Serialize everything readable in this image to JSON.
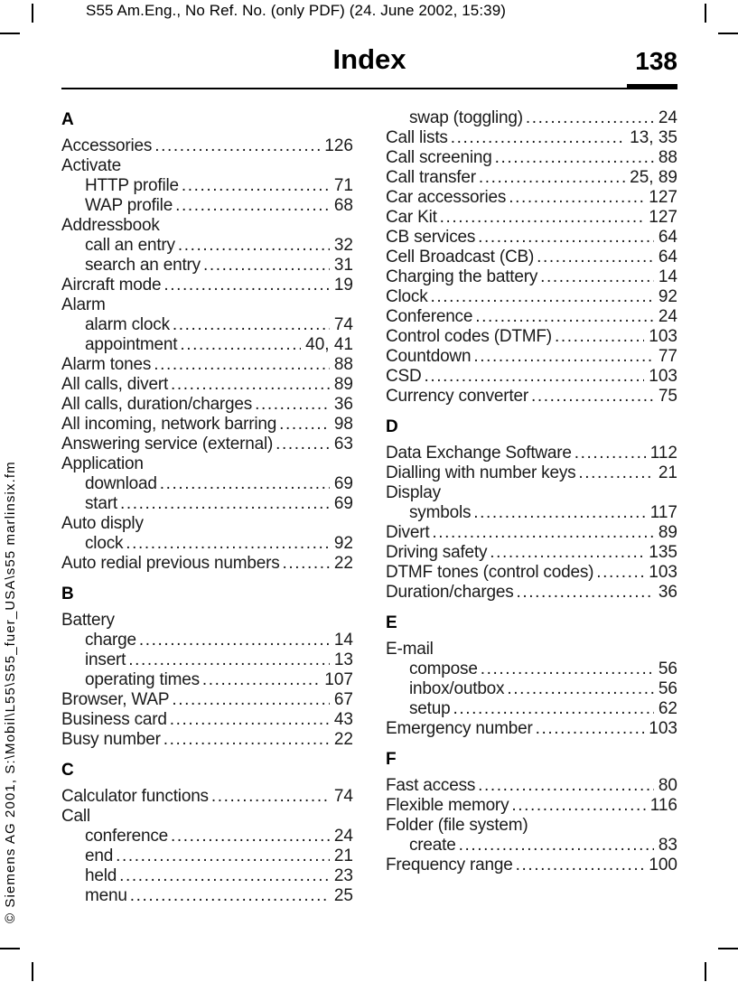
{
  "colors": {
    "text": "#000000",
    "background": "#ffffff"
  },
  "header": {
    "doc_info": "S55 Am.Eng., No Ref. No. (only PDF) (24. June 2002, 15:39)",
    "title": "Index",
    "page_number": "138"
  },
  "sidebar": {
    "copyright": "© Siemens AG 2001, S:\\Mobil\\L55\\S55_fuer_USA\\s55 marlinsix.fm"
  },
  "index": {
    "left_column": [
      {
        "type": "section",
        "label": "A"
      },
      {
        "type": "entry",
        "indent": 0,
        "label": "Accessories",
        "pages": "126"
      },
      {
        "type": "entry",
        "indent": 0,
        "label": "Activate",
        "pages": ""
      },
      {
        "type": "entry",
        "indent": 1,
        "label": "HTTP profile",
        "pages": "71"
      },
      {
        "type": "entry",
        "indent": 1,
        "label": "WAP profile",
        "pages": "68"
      },
      {
        "type": "entry",
        "indent": 0,
        "label": "Addressbook",
        "pages": ""
      },
      {
        "type": "entry",
        "indent": 1,
        "label": "call an entry",
        "pages": "32"
      },
      {
        "type": "entry",
        "indent": 1,
        "label": "search an entry",
        "pages": "31"
      },
      {
        "type": "entry",
        "indent": 0,
        "label": "Aircraft mode",
        "pages": "19"
      },
      {
        "type": "entry",
        "indent": 0,
        "label": "Alarm",
        "pages": ""
      },
      {
        "type": "entry",
        "indent": 1,
        "label": "alarm clock",
        "pages": "74"
      },
      {
        "type": "entry",
        "indent": 1,
        "label": "appointment",
        "pages": "40, 41"
      },
      {
        "type": "entry",
        "indent": 0,
        "label": "Alarm tones",
        "pages": "88"
      },
      {
        "type": "entry",
        "indent": 0,
        "label": "All calls, divert",
        "pages": "89"
      },
      {
        "type": "entry",
        "indent": 0,
        "label": "All calls, duration/charges",
        "pages": "36"
      },
      {
        "type": "entry",
        "indent": 0,
        "label": "All incoming, network barring",
        "pages": "98"
      },
      {
        "type": "entry",
        "indent": 0,
        "label": "Answering service (external)",
        "pages": "63"
      },
      {
        "type": "entry",
        "indent": 0,
        "label": "Application",
        "pages": ""
      },
      {
        "type": "entry",
        "indent": 1,
        "label": "download",
        "pages": "69"
      },
      {
        "type": "entry",
        "indent": 1,
        "label": "start",
        "pages": "69"
      },
      {
        "type": "entry",
        "indent": 0,
        "label": "Auto disply",
        "pages": ""
      },
      {
        "type": "entry",
        "indent": 1,
        "label": "clock",
        "pages": "92"
      },
      {
        "type": "entry",
        "indent": 0,
        "label": "Auto redial previous numbers",
        "pages": "22"
      },
      {
        "type": "section",
        "label": "B"
      },
      {
        "type": "entry",
        "indent": 0,
        "label": "Battery",
        "pages": ""
      },
      {
        "type": "entry",
        "indent": 1,
        "label": "charge",
        "pages": "14"
      },
      {
        "type": "entry",
        "indent": 1,
        "label": "insert",
        "pages": "13"
      },
      {
        "type": "entry",
        "indent": 1,
        "label": "operating times",
        "pages": "107"
      },
      {
        "type": "entry",
        "indent": 0,
        "label": "Browser, WAP",
        "pages": "67"
      },
      {
        "type": "entry",
        "indent": 0,
        "label": "Business card",
        "pages": "43"
      },
      {
        "type": "entry",
        "indent": 0,
        "label": "Busy number",
        "pages": "22"
      },
      {
        "type": "section",
        "label": "C"
      },
      {
        "type": "entry",
        "indent": 0,
        "label": "Calculator functions",
        "pages": "74"
      },
      {
        "type": "entry",
        "indent": 0,
        "label": "Call",
        "pages": ""
      },
      {
        "type": "entry",
        "indent": 1,
        "label": "conference",
        "pages": "24"
      },
      {
        "type": "entry",
        "indent": 1,
        "label": "end",
        "pages": "21"
      },
      {
        "type": "entry",
        "indent": 1,
        "label": "held",
        "pages": "23"
      },
      {
        "type": "entry",
        "indent": 1,
        "label": "menu",
        "pages": "25"
      }
    ],
    "right_column": [
      {
        "type": "entry",
        "indent": 1,
        "label": "swap (toggling)",
        "pages": "24"
      },
      {
        "type": "entry",
        "indent": 0,
        "label": "Call lists",
        "pages": "13, 35"
      },
      {
        "type": "entry",
        "indent": 0,
        "label": "Call screening",
        "pages": "88"
      },
      {
        "type": "entry",
        "indent": 0,
        "label": "Call transfer",
        "pages": "25, 89"
      },
      {
        "type": "entry",
        "indent": 0,
        "label": "Car accessories",
        "pages": "127"
      },
      {
        "type": "entry",
        "indent": 0,
        "label": "Car Kit",
        "pages": "127"
      },
      {
        "type": "entry",
        "indent": 0,
        "label": "CB services",
        "pages": "64"
      },
      {
        "type": "entry",
        "indent": 0,
        "label": "Cell Broadcast (CB)",
        "pages": "64"
      },
      {
        "type": "entry",
        "indent": 0,
        "label": "Charging the battery",
        "pages": "14"
      },
      {
        "type": "entry",
        "indent": 0,
        "label": "Clock",
        "pages": "92"
      },
      {
        "type": "entry",
        "indent": 0,
        "label": "Conference",
        "pages": "24"
      },
      {
        "type": "entry",
        "indent": 0,
        "label": "Control codes (DTMF)",
        "pages": "103"
      },
      {
        "type": "entry",
        "indent": 0,
        "label": "Countdown",
        "pages": "77"
      },
      {
        "type": "entry",
        "indent": 0,
        "label": "CSD",
        "pages": "103"
      },
      {
        "type": "entry",
        "indent": 0,
        "label": "Currency converter",
        "pages": "75"
      },
      {
        "type": "section",
        "label": "D"
      },
      {
        "type": "entry",
        "indent": 0,
        "label": "Data Exchange Software",
        "pages": "112"
      },
      {
        "type": "entry",
        "indent": 0,
        "label": "Dialling with number keys",
        "pages": "21"
      },
      {
        "type": "entry",
        "indent": 0,
        "label": "Display",
        "pages": ""
      },
      {
        "type": "entry",
        "indent": 1,
        "label": "symbols",
        "pages": "117"
      },
      {
        "type": "entry",
        "indent": 0,
        "label": "Divert",
        "pages": "89"
      },
      {
        "type": "entry",
        "indent": 0,
        "label": "Driving safety",
        "pages": "135"
      },
      {
        "type": "entry",
        "indent": 0,
        "label": "DTMF tones (control codes)",
        "pages": "103"
      },
      {
        "type": "entry",
        "indent": 0,
        "label": "Duration/charges",
        "pages": "36"
      },
      {
        "type": "section",
        "label": "E"
      },
      {
        "type": "entry",
        "indent": 0,
        "label": "E-mail",
        "pages": ""
      },
      {
        "type": "entry",
        "indent": 1,
        "label": "compose",
        "pages": "56"
      },
      {
        "type": "entry",
        "indent": 1,
        "label": "inbox/outbox",
        "pages": "56"
      },
      {
        "type": "entry",
        "indent": 1,
        "label": "setup",
        "pages": "62"
      },
      {
        "type": "entry",
        "indent": 0,
        "label": "Emergency number",
        "pages": "103"
      },
      {
        "type": "section",
        "label": "F"
      },
      {
        "type": "entry",
        "indent": 0,
        "label": "Fast access",
        "pages": "80"
      },
      {
        "type": "entry",
        "indent": 0,
        "label": "Flexible memory",
        "pages": "116"
      },
      {
        "type": "entry",
        "indent": 0,
        "label": "Folder (file system)",
        "pages": ""
      },
      {
        "type": "entry",
        "indent": 1,
        "label": "create",
        "pages": "83"
      },
      {
        "type": "entry",
        "indent": 0,
        "label": "Frequency range",
        "pages": "100"
      }
    ]
  }
}
